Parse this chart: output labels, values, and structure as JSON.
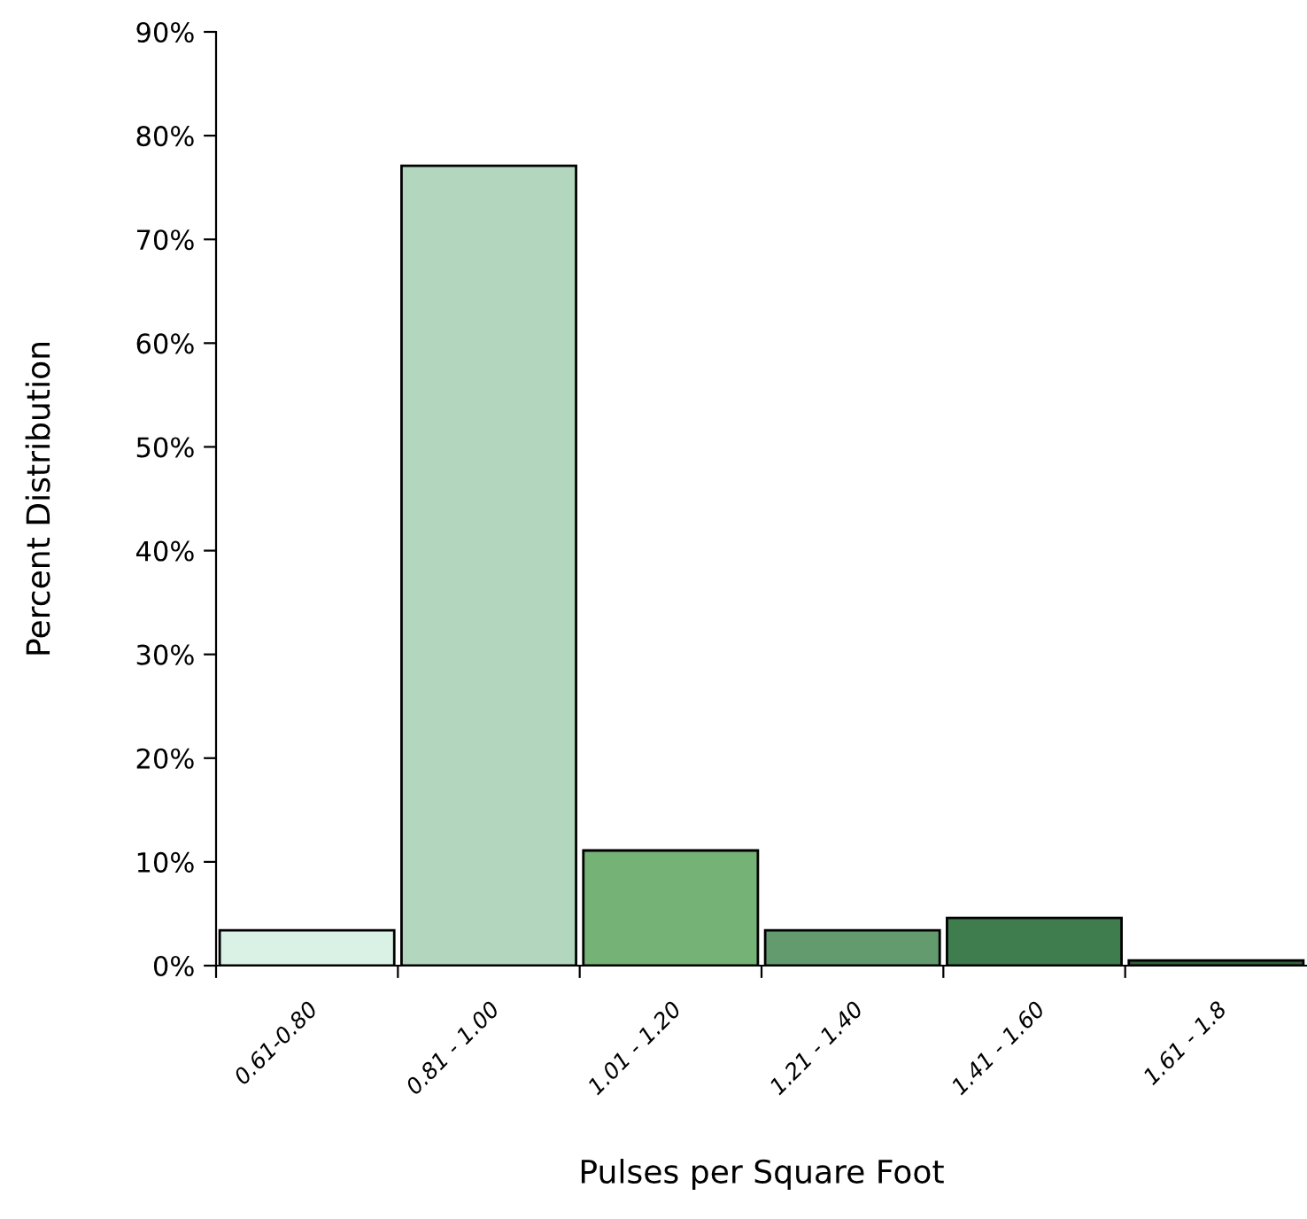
{
  "chart_data": {
    "type": "bar",
    "xlabel": "Pulses per Square Foot",
    "ylabel": "Percent Distribution",
    "categories": [
      "0.61-0.80",
      "0.81 - 1.00",
      "1.01 - 1.20",
      "1.21 - 1.40",
      "1.41 - 1.60",
      "1.61 - 1.8"
    ],
    "values": [
      3.4,
      77.1,
      11.1,
      3.4,
      4.6,
      0.5
    ],
    "colors": [
      "#daf2e6",
      "#b3d6be",
      "#75b275",
      "#639a6e",
      "#3f7d4f",
      "#2f5f39"
    ],
    "ylim": [
      0,
      90
    ],
    "yticks": [
      {
        "value": 0,
        "label": "0%"
      },
      {
        "value": 10,
        "label": "10%"
      },
      {
        "value": 20,
        "label": "20%"
      },
      {
        "value": 30,
        "label": "30%"
      },
      {
        "value": 40,
        "label": "40%"
      },
      {
        "value": 50,
        "label": "50%"
      },
      {
        "value": 60,
        "label": "60%"
      },
      {
        "value": 70,
        "label": "70%"
      },
      {
        "value": 80,
        "label": "80%"
      },
      {
        "value": 90,
        "label": "90%"
      }
    ],
    "grid": false,
    "legend": false
  }
}
